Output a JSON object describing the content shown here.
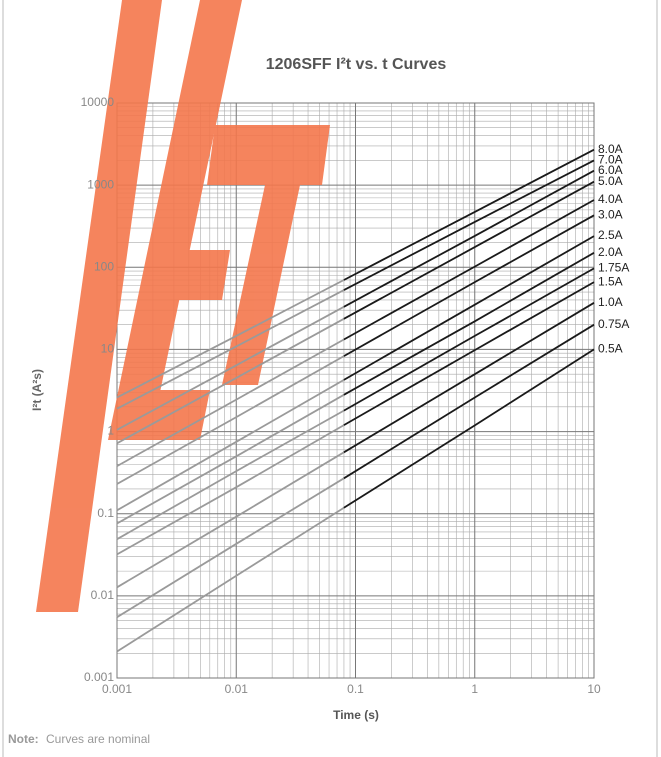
{
  "chart_data": {
    "type": "line",
    "title": "1206SFF I²t  vs. t Curves",
    "x_label": "Time (s)",
    "y_label": "I²t (A²s)",
    "log_scale": true,
    "grid": true,
    "x_rated_from": 0.08,
    "extrapolated_color": "#9a9a9a",
    "x": [
      0.001,
      0.01,
      0.08,
      1,
      10
    ],
    "series": [
      {
        "name": "8.0A",
        "color": "#1a1a1a",
        "values": [
          2.6,
          14.6,
          70,
          473,
          2700
        ]
      },
      {
        "name": "7.0A",
        "color": "#1a1a1a",
        "values": [
          1.9,
          10.9,
          52.7,
          357,
          2000
        ]
      },
      {
        "name": "6.0A",
        "color": "#1a1a1a",
        "values": [
          1.05,
          6.4,
          33,
          241,
          1500
        ]
      },
      {
        "name": "5.0A",
        "color": "#1a1a1a",
        "values": [
          0.72,
          4.5,
          23.6,
          176,
          1100
        ]
      },
      {
        "name": "4.0A",
        "color": "#1a1a1a",
        "values": [
          0.38,
          2.45,
          13.2,
          102,
          660
        ]
      },
      {
        "name": "3.0A",
        "color": "#1a1a1a",
        "values": [
          0.23,
          1.5,
          8.3,
          66,
          430
        ]
      },
      {
        "name": "2.5A",
        "color": "#1a1a1a",
        "values": [
          0.11,
          0.75,
          4.26,
          35,
          240
        ]
      },
      {
        "name": "2.0A",
        "color": "#1a1a1a",
        "values": [
          0.076,
          0.5,
          2.8,
          22,
          150
        ]
      },
      {
        "name": "1.75A",
        "color": "#1a1a1a",
        "values": [
          0.049,
          0.33,
          1.8,
          14.6,
          97
        ]
      },
      {
        "name": "1.5A",
        "color": "#1a1a1a",
        "values": [
          0.032,
          0.21,
          1.2,
          9.8,
          66
        ]
      },
      {
        "name": "1.0A",
        "color": "#1a1a1a",
        "values": [
          0.0127,
          0.092,
          0.56,
          5,
          37
        ]
      },
      {
        "name": "0.75A",
        "color": "#1a1a1a",
        "values": [
          0.0055,
          0.043,
          0.27,
          2.6,
          20
        ]
      },
      {
        "name": "0.5A",
        "color": "#1a1a1a",
        "values": [
          0.0021,
          0.0176,
          0.118,
          1.19,
          10
        ]
      }
    ],
    "xlim": [
      0.001,
      10
    ],
    "xticks": [
      0.001,
      0.01,
      0.1,
      1,
      10
    ],
    "ylim": [
      0.001,
      10000
    ],
    "yticks": [
      0.001,
      0.01,
      0.1,
      1,
      10,
      100,
      1000,
      10000
    ]
  },
  "note": {
    "label": "Note:",
    "text": "Curves are nominal"
  }
}
